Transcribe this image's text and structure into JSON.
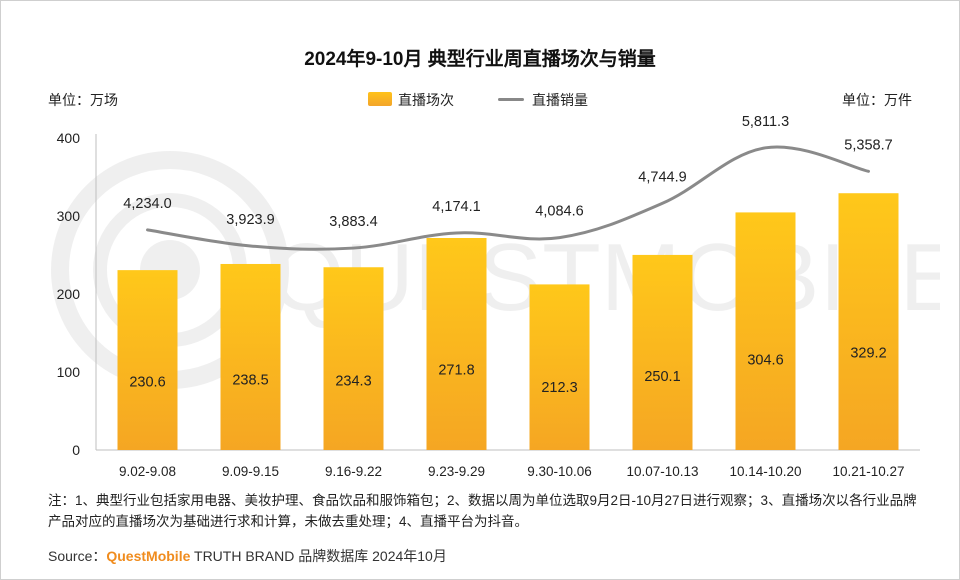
{
  "title": "2024年9-10月 典型行业周直播场次与销量",
  "unit_left": "单位：万场",
  "unit_right": "单位：万件",
  "legend": {
    "bar": "直播场次",
    "line": "直播销量"
  },
  "colors": {
    "bar_top": "#ffc81a",
    "bar_bottom": "#f5a623",
    "line": "#8a8a8a",
    "brand": "#f08c1e"
  },
  "note": "注：1、典型行业包括家用电器、美妆护理、食品饮品和服饰箱包；2、数据以周为单位选取9月2日-10月27日进行观察；3、直播场次以各行业品牌产品对应的直播场次为基础进行求和计算，未做去重处理；4、直播平台为抖音。",
  "source_prefix": "Source：",
  "source_brand": "QuestMobile",
  "source_rest": " TRUTH BRAND 品牌数据库 2024年10月",
  "watermark": "QUESTMOBILE",
  "chart_data": {
    "type": "bar",
    "categories": [
      "9.02-9.08",
      "9.09-9.15",
      "9.16-9.22",
      "9.23-9.29",
      "9.30-10.06",
      "10.07-10.13",
      "10.14-10.20",
      "10.21-10.27"
    ],
    "series": [
      {
        "name": "直播场次",
        "type": "bar",
        "axis": "left",
        "values": [
          230.6,
          238.5,
          234.3,
          271.8,
          212.3,
          250.1,
          304.6,
          329.2
        ],
        "labels": [
          "230.6",
          "238.5",
          "234.3",
          "271.8",
          "212.3",
          "250.1",
          "304.6",
          "329.2"
        ]
      },
      {
        "name": "直播销量",
        "type": "line",
        "axis": "right",
        "values": [
          4234.0,
          3923.9,
          3883.4,
          4174.1,
          4084.6,
          4744.9,
          5811.3,
          5358.7
        ],
        "labels": [
          "4,234.0",
          "3,923.9",
          "3,883.4",
          "4,174.1",
          "4,084.6",
          "4,744.9",
          "5,811.3",
          "5,358.7"
        ]
      }
    ],
    "left_axis": {
      "min": 0,
      "max": 400,
      "ticks": [
        "0",
        "100",
        "200",
        "300",
        "400"
      ]
    },
    "right_axis": {
      "min": 0,
      "max": 6000
    },
    "grid": false,
    "legend_position": "top-center"
  }
}
